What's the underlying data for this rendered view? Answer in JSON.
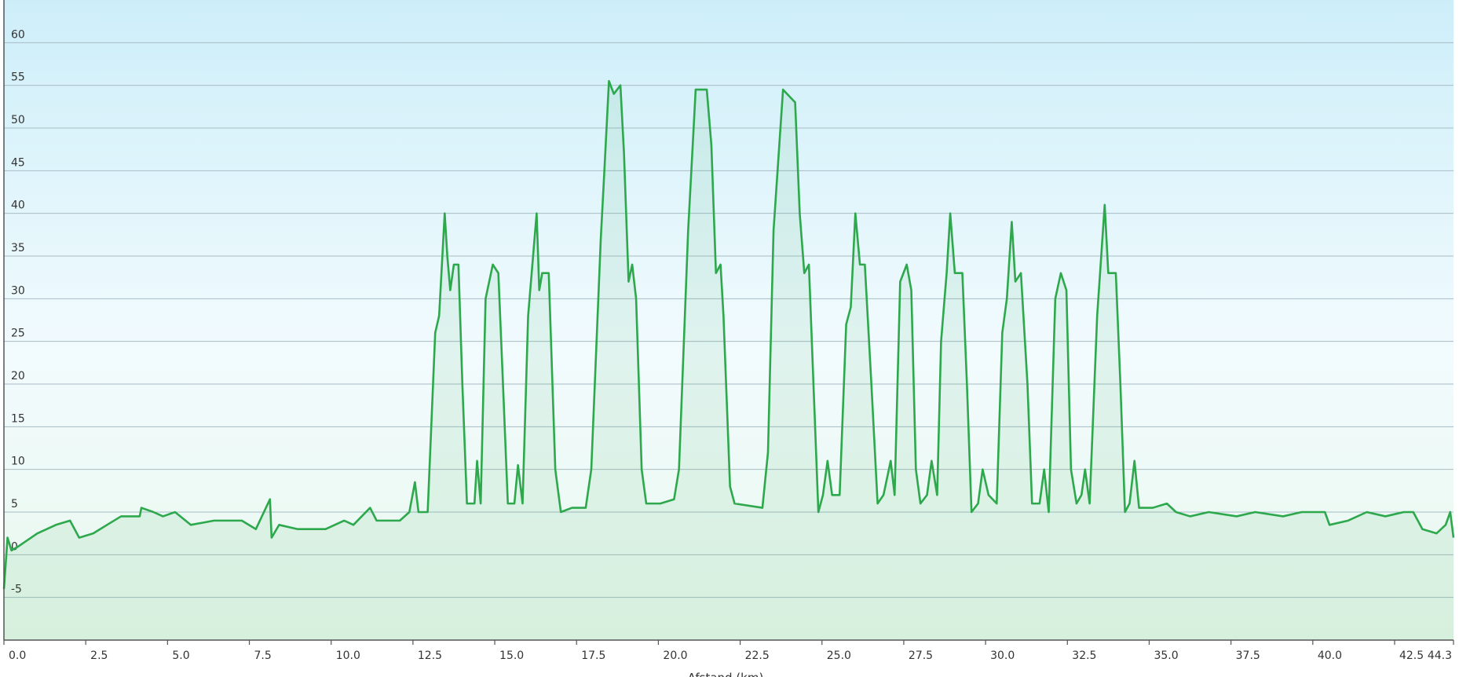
{
  "chart_data": {
    "type": "line",
    "x_label": "Afstand (km)",
    "x": [
      0,
      0.11,
      0.23,
      0.45,
      1.02,
      1.59,
      2.02,
      2.3,
      2.73,
      3.15,
      3.58,
      4.15,
      4.2,
      4.57,
      4.86,
      5.23,
      5.71,
      6.42,
      7.27,
      7.7,
      8.13,
      8.18,
      8.41,
      8.98,
      9.83,
      10.4,
      10.68,
      11.19,
      11.39,
      12.1,
      12.39,
      12.56,
      12.67,
      12.95,
      13.18,
      13.3,
      13.47,
      13.55,
      13.64,
      13.75,
      13.89,
      14.01,
      14.15,
      14.38,
      14.46,
      14.57,
      14.72,
      14.94,
      15.11,
      15.23,
      15.4,
      15.6,
      15.71,
      15.85,
      16.02,
      16.28,
      16.36,
      16.45,
      16.65,
      16.85,
      17.02,
      17.36,
      17.78,
      17.95,
      18.24,
      18.35,
      18.49,
      18.64,
      18.84,
      18.95,
      19.09,
      19.2,
      19.32,
      19.49,
      19.63,
      20.06,
      20.48,
      20.63,
      20.91,
      21.05,
      21.14,
      21.48,
      21.62,
      21.76,
      21.9,
      21.99,
      22.19,
      22.33,
      23.18,
      23.35,
      23.52,
      23.81,
      24.18,
      24.32,
      24.46,
      24.6,
      24.74,
      24.89,
      25.03,
      25.17,
      25.31,
      25.54,
      25.74,
      25.88,
      26.02,
      26.16,
      26.31,
      26.51,
      26.7,
      26.88,
      27.1,
      27.22,
      27.39,
      27.59,
      27.73,
      27.87,
      28.01,
      28.21,
      28.35,
      28.52,
      28.64,
      28.81,
      28.92,
      29.06,
      29.29,
      29.43,
      29.57,
      29.77,
      29.91,
      30.09,
      30.34,
      30.51,
      30.65,
      30.8,
      30.91,
      31.08,
      31.28,
      31.42,
      31.65,
      31.79,
      31.93,
      32.13,
      32.3,
      32.47,
      32.61,
      32.78,
      32.93,
      33.04,
      33.18,
      33.41,
      33.64,
      33.75,
      33.98,
      34.12,
      34.26,
      34.4,
      34.55,
      34.69,
      35.11,
      35.54,
      35.82,
      36.25,
      36.82,
      37.67,
      38.24,
      39.09,
      39.66,
      40.37,
      40.51,
      41.08,
      41.65,
      42.22,
      42.78,
      43.07,
      43.35,
      43.78,
      44.06,
      44.2,
      44.3
    ],
    "series": [
      {
        "color": "#2ea84c",
        "values": [
          -4,
          2,
          0.5,
          1,
          2.5,
          3.5,
          4,
          2,
          2.5,
          3.5,
          4.5,
          4.5,
          5.5,
          5,
          4.5,
          5,
          3.5,
          4,
          4,
          3,
          6.5,
          2,
          3.5,
          3,
          3,
          4,
          3.5,
          5.5,
          4,
          4,
          5,
          8.5,
          5,
          5,
          26,
          28,
          40,
          35,
          31,
          34,
          34,
          20,
          6,
          6,
          11,
          6,
          30,
          34,
          33,
          22,
          6,
          6,
          10.5,
          6,
          28,
          40,
          31,
          33,
          33,
          10,
          5,
          5.5,
          5.5,
          10,
          37,
          45,
          55.5,
          54,
          55,
          47,
          32,
          34,
          30,
          10,
          6,
          6,
          6.5,
          10,
          38,
          48,
          54.5,
          54.5,
          48,
          33,
          34,
          28,
          8,
          6,
          5.5,
          12,
          38,
          54.5,
          53,
          40,
          33,
          34,
          20,
          5,
          7,
          11,
          7,
          7,
          27,
          29,
          40,
          34,
          34,
          20,
          6,
          7,
          11,
          7,
          32,
          34,
          31,
          10,
          6,
          7,
          11,
          7,
          25,
          33,
          40,
          33,
          33,
          20,
          5,
          6,
          10,
          7,
          6,
          26,
          30,
          39,
          32,
          33,
          20,
          6,
          6,
          10,
          5,
          30,
          33,
          31,
          10,
          6,
          7,
          10,
          6,
          28,
          41,
          33,
          33,
          20,
          5,
          6,
          11,
          5.5,
          5.5,
          6,
          5,
          4.5,
          5,
          4.5,
          5,
          4.5,
          5,
          5,
          3.5,
          4,
          5,
          4.5,
          5,
          5,
          3,
          2.5,
          3.5,
          5,
          2
        ]
      }
    ],
    "xlim": [
      0,
      44.3
    ],
    "ylim": [
      -10,
      65
    ],
    "xticks": [
      {
        "value": 0,
        "label": "0.0"
      },
      2.5,
      {
        "value": 5,
        "label": "5.0"
      },
      7.5,
      {
        "value": 10,
        "label": "10.0"
      },
      12.5,
      {
        "value": 15,
        "label": "15.0"
      },
      17.5,
      {
        "value": 20,
        "label": "20.0"
      },
      22.5,
      {
        "value": 25,
        "label": "25.0"
      },
      27.5,
      {
        "value": 30,
        "label": "30.0"
      },
      32.5,
      {
        "value": 35,
        "label": "35.0"
      },
      37.5,
      {
        "value": 40,
        "label": "40.0"
      },
      42.5,
      44.3
    ],
    "yticks": [
      -5,
      0,
      5,
      10,
      15,
      20,
      25,
      30,
      35,
      40,
      45,
      50,
      55,
      60
    ],
    "grid": true
  }
}
